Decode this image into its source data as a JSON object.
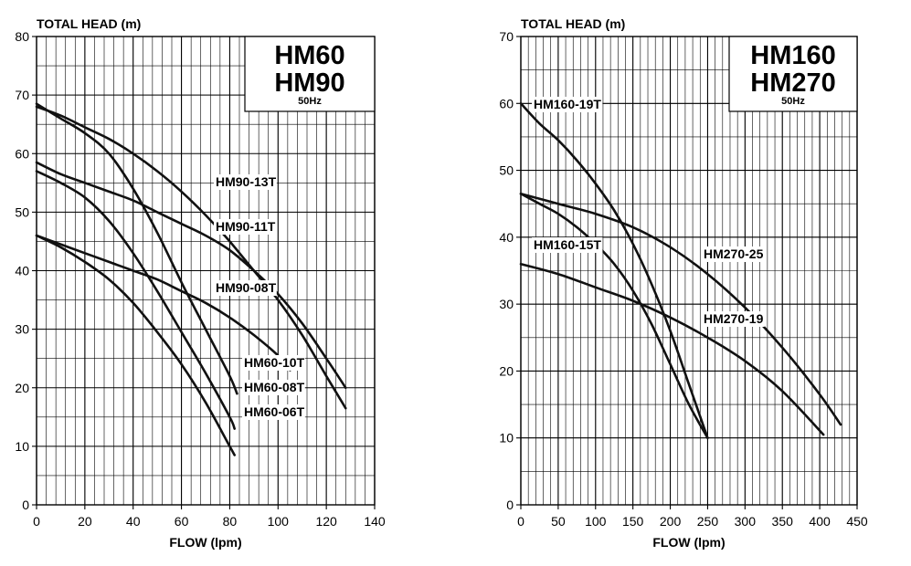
{
  "chart_data": [
    {
      "type": "line",
      "title_lines": [
        "HM60",
        "HM90"
      ],
      "subtitle": "50Hz",
      "xlabel": "FLOW (lpm)",
      "ylabel": "TOTAL HEAD (m)",
      "xlim": [
        0,
        140
      ],
      "ylim": [
        0,
        80
      ],
      "xticks": [
        0,
        20,
        40,
        60,
        80,
        100,
        120,
        140
      ],
      "yticks": [
        0,
        10,
        20,
        30,
        40,
        50,
        60,
        70,
        80
      ],
      "grid": true,
      "series": [
        {
          "name": "HM90-13T",
          "x": [
            0,
            10,
            20,
            30,
            40,
            50,
            60,
            70,
            80,
            90,
            100,
            110,
            120,
            128
          ],
          "y": [
            68,
            66.5,
            64.5,
            62.5,
            60,
            57,
            53.5,
            49.5,
            45,
            40,
            35,
            29,
            22,
            16.5
          ]
        },
        {
          "name": "HM90-11T",
          "x": [
            0,
            10,
            20,
            30,
            40,
            50,
            60,
            70,
            80,
            90,
            100,
            110,
            120,
            128
          ],
          "y": [
            58.5,
            56.5,
            55,
            53.5,
            52,
            50,
            48,
            46,
            43.5,
            40,
            36,
            31,
            25,
            20
          ]
        },
        {
          "name": "HM90-08T",
          "x": [
            0,
            10,
            20,
            30,
            40,
            50,
            60,
            70,
            80,
            90,
            100,
            105
          ],
          "y": [
            46,
            44.5,
            43,
            41.5,
            40,
            38.5,
            36.5,
            34.5,
            32,
            29,
            25.5,
            23
          ]
        },
        {
          "name": "HM60-10T",
          "x": [
            0,
            10,
            20,
            30,
            40,
            50,
            60,
            70,
            80,
            83
          ],
          "y": [
            68.5,
            66,
            63.5,
            60,
            54,
            46.5,
            38,
            30,
            22,
            19
          ]
        },
        {
          "name": "HM60-08T",
          "x": [
            0,
            10,
            20,
            30,
            40,
            50,
            60,
            70,
            80,
            82
          ],
          "y": [
            57,
            55,
            52.5,
            48.5,
            43,
            36.5,
            29.5,
            22.5,
            15,
            13
          ]
        },
        {
          "name": "HM60-06T",
          "x": [
            0,
            10,
            20,
            30,
            40,
            50,
            60,
            70,
            80,
            82
          ],
          "y": [
            46,
            44,
            41.5,
            38.5,
            34.5,
            29.5,
            24,
            17.5,
            10,
            8.5
          ]
        }
      ]
    },
    {
      "type": "line",
      "title_lines": [
        "HM160",
        "HM270"
      ],
      "subtitle": "50Hz",
      "xlabel": "FLOW (lpm)",
      "ylabel": "TOTAL HEAD (m)",
      "xlim": [
        0,
        450
      ],
      "ylim": [
        0,
        70
      ],
      "xticks": [
        0,
        50,
        100,
        150,
        200,
        250,
        300,
        350,
        400,
        450
      ],
      "yticks": [
        0,
        10,
        20,
        30,
        40,
        50,
        60,
        70
      ],
      "grid": true,
      "series": [
        {
          "name": "HM160-19T",
          "x": [
            0,
            25,
            50,
            75,
            100,
            125,
            150,
            175,
            200,
            225,
            250
          ],
          "y": [
            60,
            57,
            54.5,
            51.5,
            48,
            44,
            39,
            33,
            26,
            18,
            10
          ]
        },
        {
          "name": "HM160-15T",
          "x": [
            0,
            25,
            50,
            75,
            100,
            125,
            150,
            175,
            200,
            225,
            250
          ],
          "y": [
            46.5,
            45,
            43.5,
            41.5,
            39,
            36,
            32,
            27,
            21,
            15,
            10
          ]
        },
        {
          "name": "HM270-25",
          "x": [
            0,
            50,
            100,
            150,
            200,
            250,
            300,
            350,
            400,
            428
          ],
          "y": [
            46.5,
            45,
            43.5,
            41.5,
            38.5,
            34.5,
            29.5,
            23.5,
            16.5,
            12
          ]
        },
        {
          "name": "HM270-19",
          "x": [
            0,
            50,
            100,
            150,
            200,
            250,
            300,
            350,
            405
          ],
          "y": [
            36,
            34.5,
            32.5,
            30.5,
            28,
            25,
            21.5,
            17,
            10.5
          ]
        }
      ]
    }
  ]
}
